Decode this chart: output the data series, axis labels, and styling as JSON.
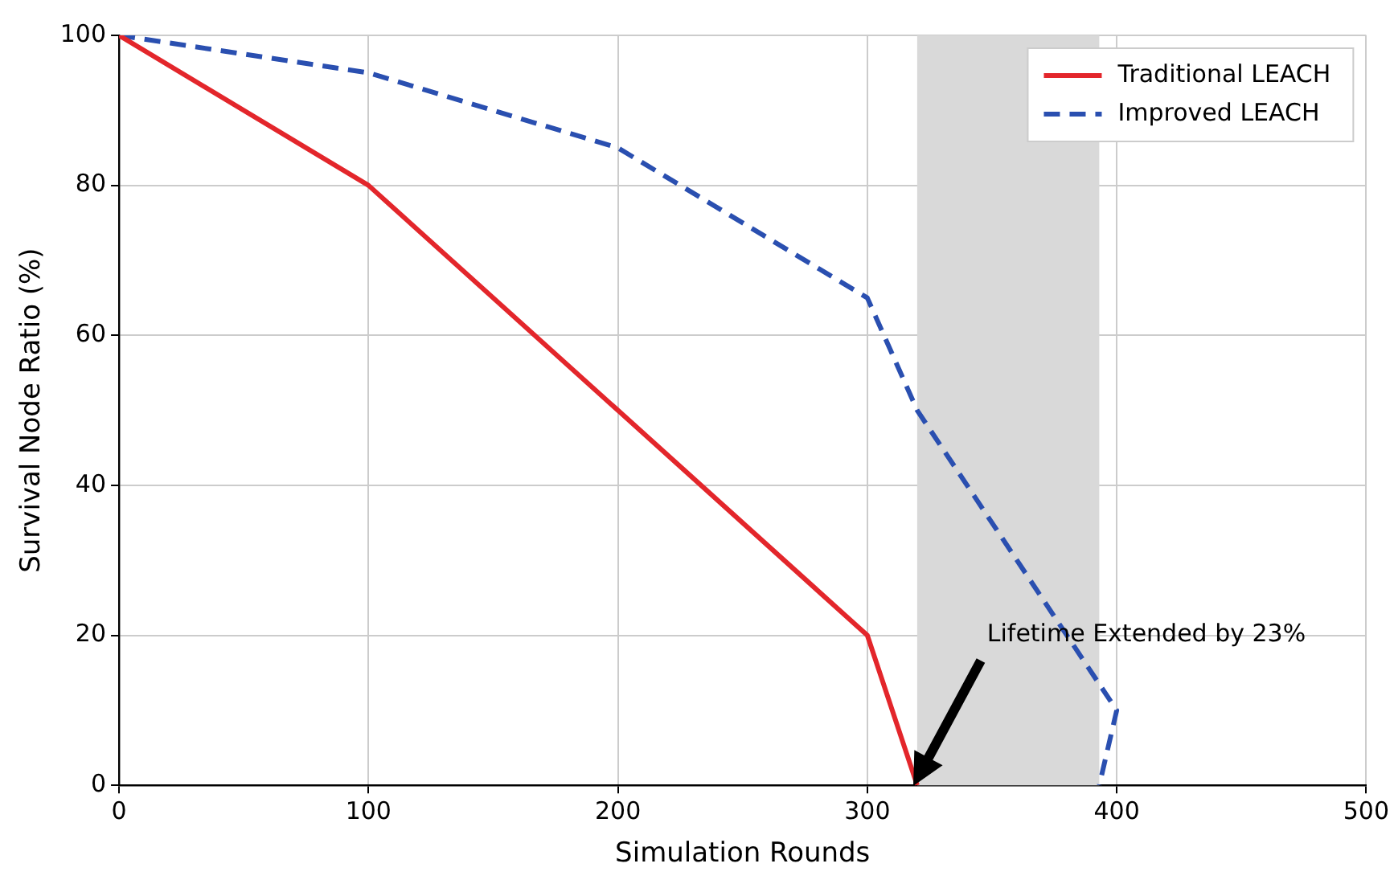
{
  "chart_data": {
    "type": "line",
    "xlabel": "Simulation Rounds",
    "ylabel": "Survival Node Ratio (%)",
    "series": [
      {
        "name": "Traditional LEACH",
        "color": "#e3262b",
        "line_style": "solid",
        "x": [
          0,
          100,
          200,
          300,
          320
        ],
        "values": [
          100,
          80,
          50,
          20,
          0
        ]
      },
      {
        "name": "Improved LEACH",
        "color": "#2a4fb0",
        "line_style": "dashed",
        "x": [
          0,
          100,
          200,
          300,
          320,
          400,
          393
        ],
        "values": [
          100,
          95,
          85,
          65,
          50,
          10,
          0
        ]
      }
    ],
    "xlim": [
      0,
      500
    ],
    "xticks": [
      0,
      100,
      200,
      300,
      400,
      500
    ],
    "ylim": [
      0,
      100
    ],
    "yticks": [
      0,
      20,
      40,
      60,
      80,
      100
    ],
    "bands": [
      {
        "axis": "x",
        "from": 320,
        "to": 393,
        "color": "#d9d9d9"
      }
    ],
    "annotations": [
      "Lifetime Extended by 23%"
    ],
    "grid": true,
    "legend": "top right",
    "marker": "none"
  }
}
